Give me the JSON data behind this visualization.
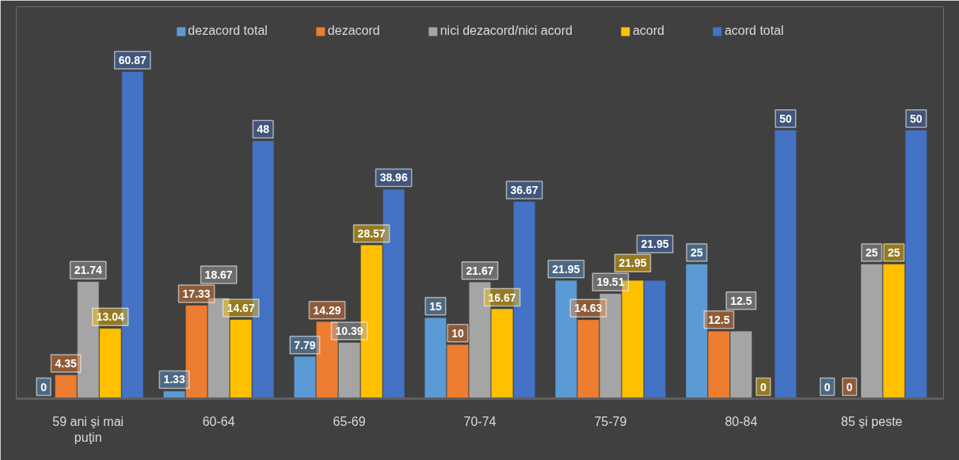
{
  "chart_data": {
    "type": "bar",
    "categories": [
      "59 ani şi mai puţin",
      "60-64",
      "65-69",
      "70-74",
      "75-79",
      "80-84",
      "85 şi peste"
    ],
    "series": [
      {
        "name": "dezacord total",
        "color": "#5b9bd5",
        "values": [
          0,
          1.33,
          7.79,
          15,
          21.95,
          25,
          0
        ]
      },
      {
        "name": "dezacord",
        "color": "#ed7d31",
        "values": [
          4.35,
          17.33,
          14.29,
          10,
          14.63,
          12.5,
          0
        ]
      },
      {
        "name": "nici dezacord/nici acord",
        "color": "#a5a5a5",
        "values": [
          21.74,
          18.67,
          10.39,
          21.67,
          19.51,
          12.5,
          25
        ]
      },
      {
        "name": "acord",
        "color": "#ffc000",
        "values": [
          13.04,
          14.67,
          28.57,
          16.67,
          21.95,
          0,
          25
        ]
      },
      {
        "name": "acord total",
        "color": "#4472c4",
        "values": [
          60.87,
          48,
          38.96,
          36.67,
          21.95,
          50,
          50
        ]
      }
    ],
    "data_labels": true,
    "legend": "top"
  }
}
